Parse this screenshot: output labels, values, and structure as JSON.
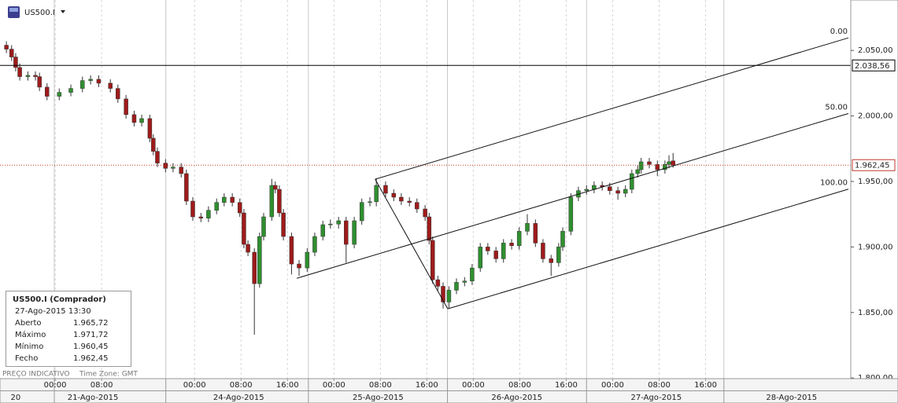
{
  "header": {
    "symbol": "US500.I"
  },
  "chart_data": {
    "type": "candlestick",
    "x": [
      -8.4,
      -7.5,
      -6.8,
      -6.1,
      -4.7,
      -3.4,
      -2.7,
      -1.4,
      0.7,
      2.7,
      4.7,
      6.1,
      7.5,
      9.5,
      10.8,
      12.2,
      13.6,
      14.9,
      16.3,
      16.9,
      17.6,
      19.0,
      20.3,
      21.7,
      22.6,
      23.7,
      25.1,
      26.4,
      27.8,
      29.1,
      30.5,
      31.8,
      32.5,
      33.2,
      34.3,
      35.2,
      35.9,
      37.3,
      37.9,
      38.6,
      39.3,
      40.7,
      42.0,
      43.4,
      44.7,
      46.1,
      47.4,
      48.8,
      50.1,
      51.5,
      52.8,
      54.2,
      55.3,
      56.9,
      58.3,
      59.6,
      61.0,
      62.3,
      63.7,
      64.4,
      65.0,
      65.9,
      66.8,
      67.8,
      69.1,
      70.5,
      71.8,
      73.2,
      74.5,
      75.9,
      77.2,
      78.6,
      79.9,
      81.3,
      82.7,
      84.0,
      85.4,
      86.7,
      87.4,
      88.8,
      90.1,
      91.5,
      92.8,
      94.2,
      95.5,
      96.9,
      98.2,
      99.3,
      100.3,
      100.9,
      102.3,
      103.7,
      105.0,
      105.7,
      106.4
    ],
    "open": [
      2054,
      2051,
      2045,
      2037,
      2030,
      2031,
      2030,
      2022,
      2015,
      2018,
      2021,
      2027,
      2028,
      2025,
      2021,
      2013,
      2001,
      1995,
      1998,
      1983,
      1973,
      1964,
      1960,
      1961,
      1956,
      1935,
      1923,
      1922,
      1928,
      1934,
      1938,
      1934,
      1926,
      1902,
      1896,
      1872,
      1908,
      1923,
      1947,
      1944,
      1926,
      1908,
      1887,
      1884,
      1896,
      1908,
      1917,
      1917.5,
      1920,
      1902,
      1920,
      1934,
      1934.5,
      1947,
      1941,
      1938,
      1935,
      1934,
      1929,
      1923,
      1905,
      1875,
      1870,
      1858,
      1867,
      1873,
      1874,
      1884,
      1900,
      1897,
      1891,
      1903,
      1901,
      1912,
      1918,
      1903,
      1891,
      1888,
      1900,
      1912,
      1938,
      1943,
      1944,
      1947,
      1946,
      1943,
      1941,
      1944,
      1956,
      1959,
      1965,
      1963,
      1959,
      1963,
      1965.72
    ],
    "high": [
      2057,
      2054,
      2048,
      2040,
      2034,
      2034,
      2033,
      2025,
      2021,
      2024,
      2030,
      2031,
      2031,
      2028,
      2024,
      2016,
      2004,
      2001,
      2001,
      1986,
      1976,
      1967,
      1964,
      1964,
      1959,
      1938,
      1926,
      1931,
      1937,
      1941,
      1941,
      1937,
      1929,
      1905,
      1899,
      1911,
      1926,
      1952,
      1950,
      1947,
      1929,
      1911,
      1890,
      1899,
      1911,
      1920,
      1921,
      1923,
      1923,
      1923,
      1937,
      1938,
      1952,
      1950,
      1944,
      1941,
      1938,
      1937,
      1932,
      1926,
      1908,
      1878,
      1873,
      1870,
      1876,
      1877,
      1887,
      1903,
      1903,
      1900,
      1906,
      1906,
      1915,
      1925,
      1921,
      1906,
      1894,
      1903,
      1915,
      1941,
      1946,
      1947,
      1950,
      1950,
      1949,
      1946,
      1947,
      1959,
      1962,
      1968,
      1968,
      1966,
      1966,
      1970,
      1971.72
    ],
    "low": [
      2048,
      2042,
      2034,
      2027,
      2027,
      2027,
      2019,
      2012,
      2012,
      2015,
      2018,
      2024,
      2022,
      2018,
      2010,
      1998,
      1992,
      1992,
      1980,
      1970,
      1961,
      1957,
      1957,
      1953,
      1932,
      1920,
      1919,
      1919,
      1925,
      1931,
      1931,
      1923,
      1899,
      1893,
      1833,
      1869,
      1905,
      1920,
      1941,
      1923,
      1905,
      1879,
      1878,
      1881,
      1893,
      1905,
      1914,
      1914,
      1888,
      1899,
      1917,
      1931,
      1931,
      1938,
      1935,
      1932,
      1931,
      1926,
      1920,
      1902,
      1872,
      1867,
      1853,
      1853,
      1864,
      1870,
      1871,
      1881,
      1894,
      1888,
      1888,
      1898,
      1898,
      1909,
      1900,
      1888,
      1878,
      1885,
      1897,
      1909,
      1935,
      1940,
      1941,
      1943,
      1940,
      1936,
      1938,
      1941,
      1953,
      1956,
      1960,
      1954,
      1956,
      1960,
      1960.45
    ],
    "close": [
      2051,
      2045,
      2037,
      2030,
      2031,
      2030,
      2022,
      2015,
      2018,
      2021,
      2027,
      2028,
      2025,
      2021,
      2013,
      2001,
      1995,
      1998,
      1983,
      1973,
      1964,
      1960,
      1961,
      1956,
      1935,
      1923,
      1922,
      1928,
      1934,
      1938,
      1934,
      1926,
      1902,
      1896,
      1872,
      1908,
      1923,
      1947,
      1944,
      1926,
      1908,
      1887,
      1884,
      1896,
      1908,
      1917,
      1917.5,
      1920,
      1902,
      1920,
      1934,
      1934.5,
      1947,
      1941,
      1938,
      1935,
      1934,
      1929,
      1923,
      1905,
      1875,
      1870,
      1858,
      1867,
      1873,
      1874,
      1884,
      1900,
      1897,
      1891,
      1903,
      1901,
      1912,
      1918,
      1903,
      1891,
      1888,
      1900,
      1912,
      1938,
      1943,
      1944,
      1947,
      1946,
      1943,
      1941,
      1944,
      1956,
      1959,
      1965,
      1963,
      1959,
      1963,
      1965,
      1962.45
    ],
    "up_color": "#2f8f2f",
    "down_color": "#9e1b1b",
    "xlim": [
      -9.5,
      137
    ],
    "xticks": [
      {
        "value": 0,
        "label": "00:00"
      },
      {
        "value": 8,
        "label": "08:00"
      },
      {
        "value": 24,
        "label": "00:00"
      },
      {
        "value": 32,
        "label": "08:00"
      },
      {
        "value": 40,
        "label": "16:00"
      },
      {
        "value": 48,
        "label": "00:00"
      },
      {
        "value": 56,
        "label": "08:00"
      },
      {
        "value": 64,
        "label": "16:00"
      },
      {
        "value": 72,
        "label": "00:00"
      },
      {
        "value": 80,
        "label": "08:00"
      },
      {
        "value": 88,
        "label": "16:00"
      },
      {
        "value": 96,
        "label": "00:00"
      },
      {
        "value": 104,
        "label": "08:00"
      },
      {
        "value": 112,
        "label": "16:00"
      }
    ],
    "date_ticks": [
      {
        "value": -6.8,
        "label": "20"
      },
      {
        "value": 6.5,
        "label": "21-Ago-2015"
      },
      {
        "value": 31.6,
        "label": "24-Ago-2015"
      },
      {
        "value": 55.6,
        "label": "25-Ago-2015"
      },
      {
        "value": 79.5,
        "label": "26-Ago-2015"
      },
      {
        "value": 103.5,
        "label": "27-Ago-2015"
      },
      {
        "value": 126.8,
        "label": "28-Ago-2015"
      }
    ],
    "ylim": [
      1799.5,
      2088.5
    ],
    "yticks": [
      {
        "value": 1800,
        "label": "1.800,00"
      },
      {
        "value": 1850,
        "label": "1.850,00"
      },
      {
        "value": 1900,
        "label": "1.900,00"
      },
      {
        "value": 1950,
        "label": "1.950,00"
      },
      {
        "value": 2000,
        "label": "2.000,00"
      },
      {
        "value": 2050,
        "label": "2.050,00"
      }
    ],
    "grid": true,
    "price_lines": [
      {
        "value": 2038.56,
        "label": "2.038,56",
        "color": "#000000",
        "dash": false
      },
      {
        "value": 1962.45,
        "label": "1.962,45",
        "color": "#c0392b",
        "dash": true
      }
    ],
    "pitchfork": {
      "points": [
        {
          "x": 41.6,
          "y": 1876.1
        },
        {
          "x": 55.1,
          "y": 1951.7
        },
        {
          "x": 67.6,
          "y": 1852.8
        }
      ],
      "levels": [
        {
          "value": 0,
          "label": "0.00"
        },
        {
          "value": 50,
          "label": "50.00"
        },
        {
          "value": 100,
          "label": "100.00"
        }
      ],
      "color": "#111111"
    },
    "info_box": {
      "title": "US500.I (Comprador)",
      "time": "27-Ago-2015 13:30",
      "rows": [
        [
          "Aberto",
          "1.965,72"
        ],
        [
          "Máximo",
          "1.971,72"
        ],
        [
          "Mínimo",
          "1.960,45"
        ],
        [
          "Fecho",
          "1.962,45"
        ]
      ]
    },
    "footer": {
      "note": "PREÇO INDICATIVO",
      "timezone": "Time Zone: GMT"
    }
  }
}
